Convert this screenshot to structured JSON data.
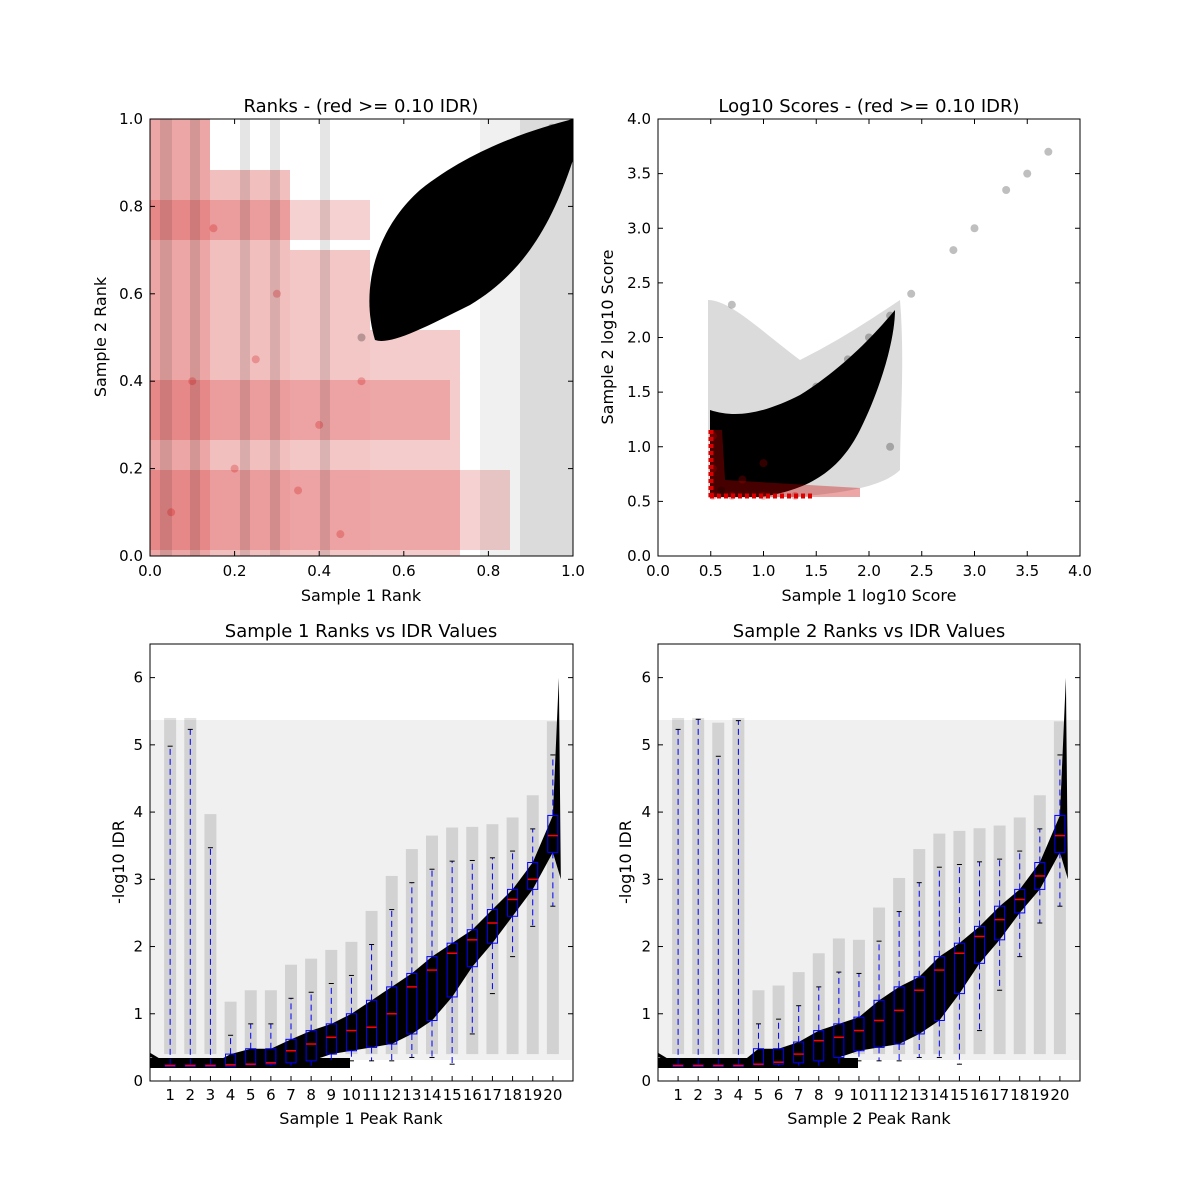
{
  "chart_data": [
    {
      "type": "scatter",
      "title": "Ranks - (red >= 0.10 IDR)",
      "xlabel": "Sample 1 Rank",
      "ylabel": "Sample 2 Rank",
      "xlim": [
        0.0,
        1.0
      ],
      "ylim": [
        0.0,
        1.0
      ],
      "xticks": [
        "0.0",
        "0.2",
        "0.4",
        "0.6",
        "0.8",
        "1.0"
      ],
      "yticks": [
        "0.0",
        "0.2",
        "0.4",
        "0.6",
        "0.8",
        "1.0"
      ],
      "colors": {
        "pass": "#000000",
        "fail": "#cc0000"
      },
      "series": [
        {
          "role": "pass",
          "points": [
            [
              0.5,
              0.5
            ],
            [
              0.55,
              0.6
            ],
            [
              0.6,
              0.7
            ],
            [
              0.65,
              0.75
            ],
            [
              0.7,
              0.8
            ],
            [
              0.75,
              0.85
            ],
            [
              0.8,
              0.9
            ],
            [
              0.85,
              0.92
            ],
            [
              0.9,
              0.95
            ],
            [
              0.95,
              0.98
            ],
            [
              1.0,
              1.0
            ],
            [
              0.7,
              0.65
            ],
            [
              0.8,
              0.75
            ],
            [
              0.9,
              0.88
            ],
            [
              0.6,
              0.55
            ]
          ]
        },
        {
          "role": "fail",
          "points": [
            [
              0.05,
              0.1
            ],
            [
              0.1,
              0.4
            ],
            [
              0.2,
              0.2
            ],
            [
              0.3,
              0.6
            ],
            [
              0.4,
              0.3
            ],
            [
              0.15,
              0.75
            ],
            [
              0.45,
              0.05
            ],
            [
              0.25,
              0.45
            ],
            [
              0.35,
              0.15
            ],
            [
              0.5,
              0.4
            ]
          ]
        }
      ]
    },
    {
      "type": "scatter",
      "title": "Log10 Scores - (red >= 0.10 IDR)",
      "xlabel": "Sample 1 log10 Score",
      "ylabel": "Sample 2 log10 Score",
      "xlim": [
        0.0,
        4.0
      ],
      "ylim": [
        0.0,
        4.0
      ],
      "xticks": [
        "0.0",
        "0.5",
        "1.0",
        "1.5",
        "2.0",
        "2.5",
        "3.0",
        "3.5",
        "4.0"
      ],
      "yticks": [
        "0.0",
        "0.5",
        "1.0",
        "1.5",
        "2.0",
        "2.5",
        "3.0",
        "3.5",
        "4.0"
      ],
      "colors": {
        "pass": "#000000",
        "fail": "#cc0000"
      },
      "series": [
        {
          "role": "pass",
          "points": [
            [
              0.6,
              0.6
            ],
            [
              0.8,
              0.9
            ],
            [
              1.0,
              1.1
            ],
            [
              1.2,
              1.3
            ],
            [
              1.5,
              1.55
            ],
            [
              1.8,
              1.8
            ],
            [
              2.0,
              2.0
            ],
            [
              2.2,
              2.2
            ],
            [
              2.4,
              2.4
            ],
            [
              2.8,
              2.8
            ],
            [
              3.0,
              3.0
            ],
            [
              3.3,
              3.35
            ],
            [
              3.5,
              3.5
            ],
            [
              3.7,
              3.7
            ],
            [
              1.6,
              0.9
            ],
            [
              2.2,
              1.0
            ],
            [
              0.7,
              2.3
            ]
          ]
        },
        {
          "role": "fail",
          "points": [
            [
              0.52,
              0.55
            ],
            [
              0.52,
              0.8
            ],
            [
              0.52,
              1.1
            ],
            [
              0.7,
              0.55
            ],
            [
              1.0,
              0.55
            ],
            [
              1.3,
              0.55
            ],
            [
              0.8,
              0.7
            ],
            [
              1.0,
              0.85
            ]
          ]
        }
      ]
    },
    {
      "type": "box",
      "title": "Sample 1 Ranks vs IDR Values",
      "xlabel": "Sample 1 Peak Rank",
      "ylabel": "-log10 IDR",
      "ylim": [
        0,
        6.5
      ],
      "yticks": [
        "0",
        "1",
        "2",
        "3",
        "4",
        "5",
        "6"
      ],
      "categories": [
        "1",
        "2",
        "3",
        "4",
        "5",
        "6",
        "7",
        "8",
        "9",
        "10",
        "11",
        "12",
        "13",
        "14",
        "15",
        "16",
        "17",
        "18",
        "19",
        "20"
      ],
      "boxes": [
        {
          "whislo": 0.22,
          "q1": 0.22,
          "med": 0.23,
          "q3": 0.24,
          "whishi": 4.98
        },
        {
          "whislo": 0.22,
          "q1": 0.22,
          "med": 0.23,
          "q3": 0.24,
          "whishi": 5.23
        },
        {
          "whislo": 0.22,
          "q1": 0.22,
          "med": 0.23,
          "q3": 0.24,
          "whishi": 3.47
        },
        {
          "whislo": 0.22,
          "q1": 0.22,
          "med": 0.24,
          "q3": 0.4,
          "whishi": 0.68
        },
        {
          "whislo": 0.22,
          "q1": 0.24,
          "med": 0.25,
          "q3": 0.48,
          "whishi": 0.85
        },
        {
          "whislo": 0.22,
          "q1": 0.25,
          "med": 0.27,
          "q3": 0.48,
          "whishi": 0.85
        },
        {
          "whislo": 0.22,
          "q1": 0.27,
          "med": 0.45,
          "q3": 0.62,
          "whishi": 1.23
        },
        {
          "whislo": 0.22,
          "q1": 0.3,
          "med": 0.55,
          "q3": 0.75,
          "whishi": 1.32
        },
        {
          "whislo": 0.25,
          "q1": 0.4,
          "med": 0.65,
          "q3": 0.85,
          "whishi": 1.45
        },
        {
          "whislo": 0.3,
          "q1": 0.45,
          "med": 0.75,
          "q3": 1.0,
          "whishi": 1.57
        },
        {
          "whislo": 0.3,
          "q1": 0.5,
          "med": 0.8,
          "q3": 1.2,
          "whishi": 2.03
        },
        {
          "whislo": 0.3,
          "q1": 0.55,
          "med": 1.0,
          "q3": 1.4,
          "whishi": 2.55
        },
        {
          "whislo": 0.35,
          "q1": 0.7,
          "med": 1.4,
          "q3": 1.6,
          "whishi": 2.95
        },
        {
          "whislo": 0.35,
          "q1": 0.9,
          "med": 1.65,
          "q3": 1.85,
          "whishi": 3.15
        },
        {
          "whislo": 0.25,
          "q1": 1.25,
          "med": 1.9,
          "q3": 2.05,
          "whishi": 3.27
        },
        {
          "whislo": 0.7,
          "q1": 1.7,
          "med": 2.1,
          "q3": 2.25,
          "whishi": 3.28
        },
        {
          "whislo": 1.3,
          "q1": 2.05,
          "med": 2.35,
          "q3": 2.55,
          "whishi": 3.32
        },
        {
          "whislo": 1.85,
          "q1": 2.45,
          "med": 2.7,
          "q3": 2.85,
          "whishi": 3.42
        },
        {
          "whislo": 2.3,
          "q1": 2.85,
          "med": 3.0,
          "q3": 3.25,
          "whishi": 3.75
        },
        {
          "whislo": 2.6,
          "q1": 3.4,
          "med": 3.65,
          "q3": 3.95,
          "whishi": 4.85
        }
      ]
    },
    {
      "type": "box",
      "title": "Sample 2 Ranks vs IDR Values",
      "xlabel": "Sample 2 Peak Rank",
      "ylabel": "-log10 IDR",
      "ylim": [
        0,
        6.5
      ],
      "yticks": [
        "0",
        "1",
        "2",
        "3",
        "4",
        "5",
        "6"
      ],
      "categories": [
        "1",
        "2",
        "3",
        "4",
        "5",
        "6",
        "7",
        "8",
        "9",
        "10",
        "11",
        "12",
        "13",
        "14",
        "15",
        "16",
        "17",
        "18",
        "19",
        "20"
      ],
      "boxes": [
        {
          "whislo": 0.22,
          "q1": 0.22,
          "med": 0.23,
          "q3": 0.24,
          "whishi": 5.23
        },
        {
          "whislo": 0.22,
          "q1": 0.22,
          "med": 0.23,
          "q3": 0.24,
          "whishi": 5.38
        },
        {
          "whislo": 0.22,
          "q1": 0.22,
          "med": 0.23,
          "q3": 0.24,
          "whishi": 4.83
        },
        {
          "whislo": 0.22,
          "q1": 0.22,
          "med": 0.23,
          "q3": 0.24,
          "whishi": 5.36
        },
        {
          "whislo": 0.22,
          "q1": 0.24,
          "med": 0.25,
          "q3": 0.48,
          "whishi": 0.85
        },
        {
          "whislo": 0.22,
          "q1": 0.25,
          "med": 0.28,
          "q3": 0.48,
          "whishi": 0.92
        },
        {
          "whislo": 0.22,
          "q1": 0.27,
          "med": 0.4,
          "q3": 0.58,
          "whishi": 1.12
        },
        {
          "whislo": 0.22,
          "q1": 0.3,
          "med": 0.6,
          "q3": 0.75,
          "whishi": 1.4
        },
        {
          "whislo": 0.25,
          "q1": 0.35,
          "med": 0.65,
          "q3": 0.85,
          "whishi": 1.62
        },
        {
          "whislo": 0.3,
          "q1": 0.45,
          "med": 0.75,
          "q3": 0.95,
          "whishi": 1.6
        },
        {
          "whislo": 0.3,
          "q1": 0.5,
          "med": 0.9,
          "q3": 1.2,
          "whishi": 2.08
        },
        {
          "whislo": 0.3,
          "q1": 0.55,
          "med": 1.05,
          "q3": 1.4,
          "whishi": 2.52
        },
        {
          "whislo": 0.35,
          "q1": 0.7,
          "med": 1.35,
          "q3": 1.55,
          "whishi": 2.95
        },
        {
          "whislo": 0.35,
          "q1": 0.9,
          "med": 1.65,
          "q3": 1.85,
          "whishi": 3.18
        },
        {
          "whislo": 0.25,
          "q1": 1.3,
          "med": 1.9,
          "q3": 2.05,
          "whishi": 3.22
        },
        {
          "whislo": 0.75,
          "q1": 1.75,
          "med": 2.15,
          "q3": 2.3,
          "whishi": 3.26
        },
        {
          "whislo": 1.35,
          "q1": 2.1,
          "med": 2.4,
          "q3": 2.6,
          "whishi": 3.3
        },
        {
          "whislo": 1.85,
          "q1": 2.5,
          "med": 2.7,
          "q3": 2.85,
          "whishi": 3.42
        },
        {
          "whislo": 2.35,
          "q1": 2.85,
          "med": 3.05,
          "q3": 3.25,
          "whishi": 3.75
        },
        {
          "whislo": 2.6,
          "q1": 3.4,
          "med": 3.65,
          "q3": 3.95,
          "whishi": 4.85
        }
      ]
    }
  ]
}
